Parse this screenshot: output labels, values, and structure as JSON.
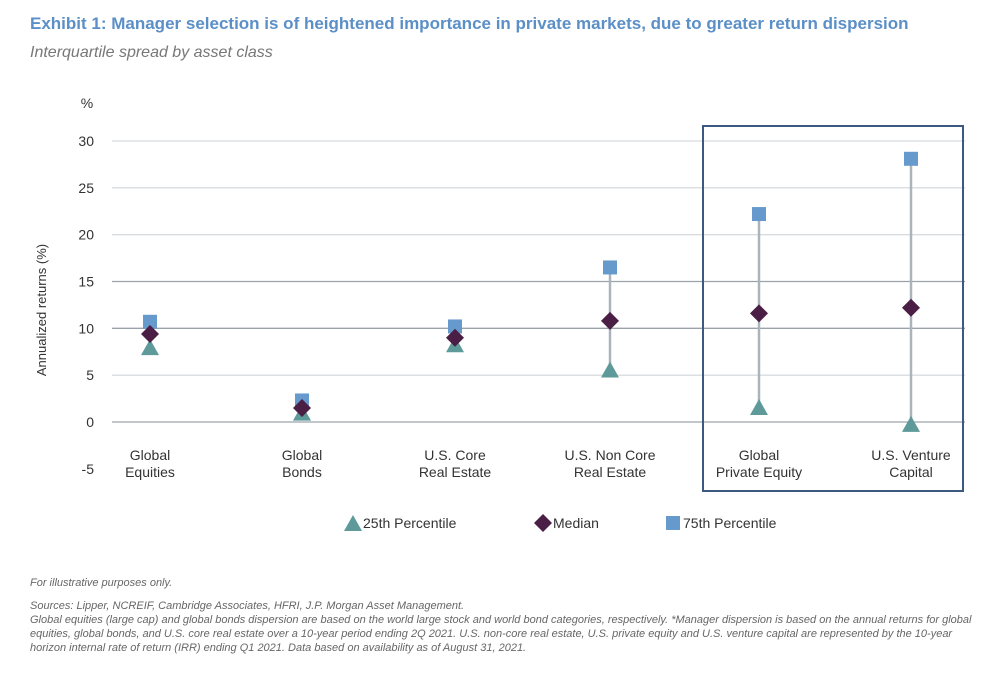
{
  "title": "Exhibit 1: Manager selection is of heightened importance in private markets, due to greater return dispersion",
  "subtitle": "Interquartile spread by asset class",
  "chart_data": {
    "type": "scatter",
    "unit_label": "%",
    "ylabel": "Annualized returns (%)",
    "ylim": [
      -5,
      30
    ],
    "yticks": [
      30,
      25,
      20,
      15,
      10,
      5,
      0,
      -5
    ],
    "grid": true,
    "legend_placement": "bottom",
    "categories": [
      [
        "Global",
        "Equities"
      ],
      [
        "Global",
        "Bonds"
      ],
      [
        "U.S. Core",
        "Real Estate"
      ],
      [
        "U.S. Non Core",
        "Real Estate"
      ],
      [
        "Global",
        "Private Equity"
      ],
      [
        "U.S. Venture",
        "Capital"
      ]
    ],
    "highlighted_categories": [
      4,
      5
    ],
    "series": [
      {
        "name": "25th Percentile",
        "marker": "triangle",
        "color": "#5e9a9a",
        "values": [
          8.0,
          1.0,
          8.3,
          5.6,
          1.6,
          -0.2
        ]
      },
      {
        "name": "Median",
        "marker": "diamond",
        "color": "#4a1e45",
        "values": [
          9.4,
          1.5,
          9.0,
          10.8,
          11.6,
          12.2
        ]
      },
      {
        "name": "75th Percentile",
        "marker": "square",
        "color": "#6699cc",
        "values": [
          10.7,
          2.3,
          10.2,
          16.5,
          22.2,
          28.1
        ]
      }
    ],
    "range_line_color": "#a9b4bd",
    "highlight_box_color": "#3c5a80"
  },
  "notes": {
    "illustrative": "For illustrative purposes only.",
    "sources": "Sources: Lipper, NCREIF, Cambridge Associates, HFRI, J.P. Morgan Asset Management.",
    "detail": "Global equities (large cap) and global bonds dispersion are based on the world large stock and world bond categories, respectively. *Manager dispersion is based on the annual returns for global equities, global bonds, and U.S. core real estate over a 10-year period ending 2Q 2021. U.S. non-core real estate, U.S. private equity and U.S. venture capital are represented by the 10-year horizon internal rate of return (IRR) ending Q1 2021. Data based on availability as of August 31, 2021."
  }
}
